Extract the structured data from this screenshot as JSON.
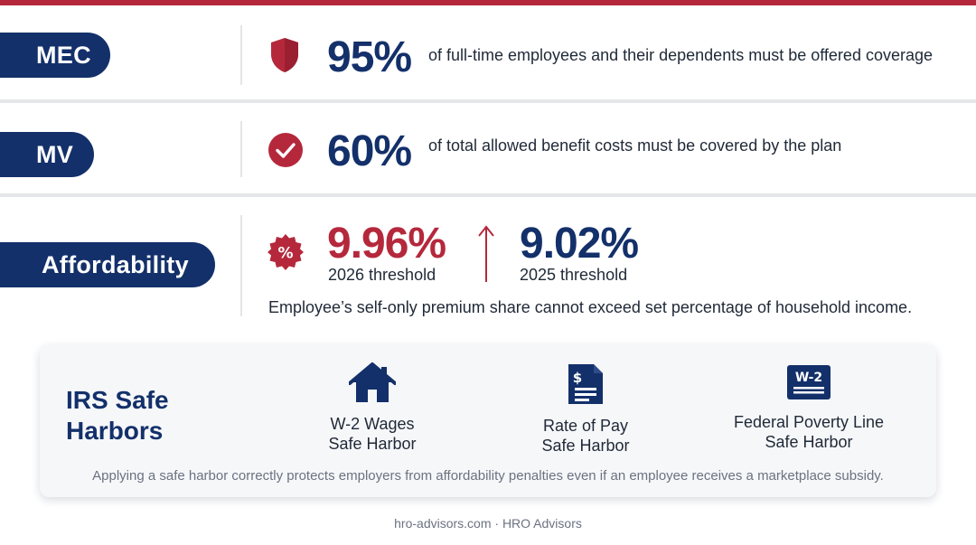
{
  "colors": {
    "navy": "#13306a",
    "crimson": "#b5283c",
    "divider": "#e4e6ea"
  },
  "mec": {
    "label": "MEC",
    "icon": "shield-icon",
    "value": "95%",
    "description": "of full-time employees and their dependents must be offered coverage"
  },
  "mv": {
    "label": "MV",
    "icon": "checkmark-circle-icon",
    "value": "60%",
    "description": "of total allowed benefit costs must be covered by the plan"
  },
  "affordability": {
    "label": "Affordability",
    "icon": "percent-badge-icon",
    "current_value": "9.96%",
    "current_label": "2026 threshold",
    "previous_value": "9.02%",
    "previous_label": "2025 threshold",
    "trend_icon": "arrow-up-icon",
    "note": "Employee’s self-only premium share cannot exceed set percentage of household income."
  },
  "safe_harbors": {
    "title": "IRS Safe\nHarbors",
    "items": [
      {
        "icon": "house-icon",
        "label": "W-2 Wages\nSafe Harbor"
      },
      {
        "icon": "pay-document-icon",
        "label": "Rate of Pay\nSafe Harbor"
      },
      {
        "icon": "w2-form-icon",
        "icon_text": "W-2",
        "label": "Federal Poverty Line\nSafe Harbor"
      }
    ],
    "note": "Applying a safe harbor correctly protects employers from affordability penalties even if an employee receives a marketplace subsidy."
  },
  "footer": {
    "text": "hro-advisors.com · HRO Advisors"
  }
}
